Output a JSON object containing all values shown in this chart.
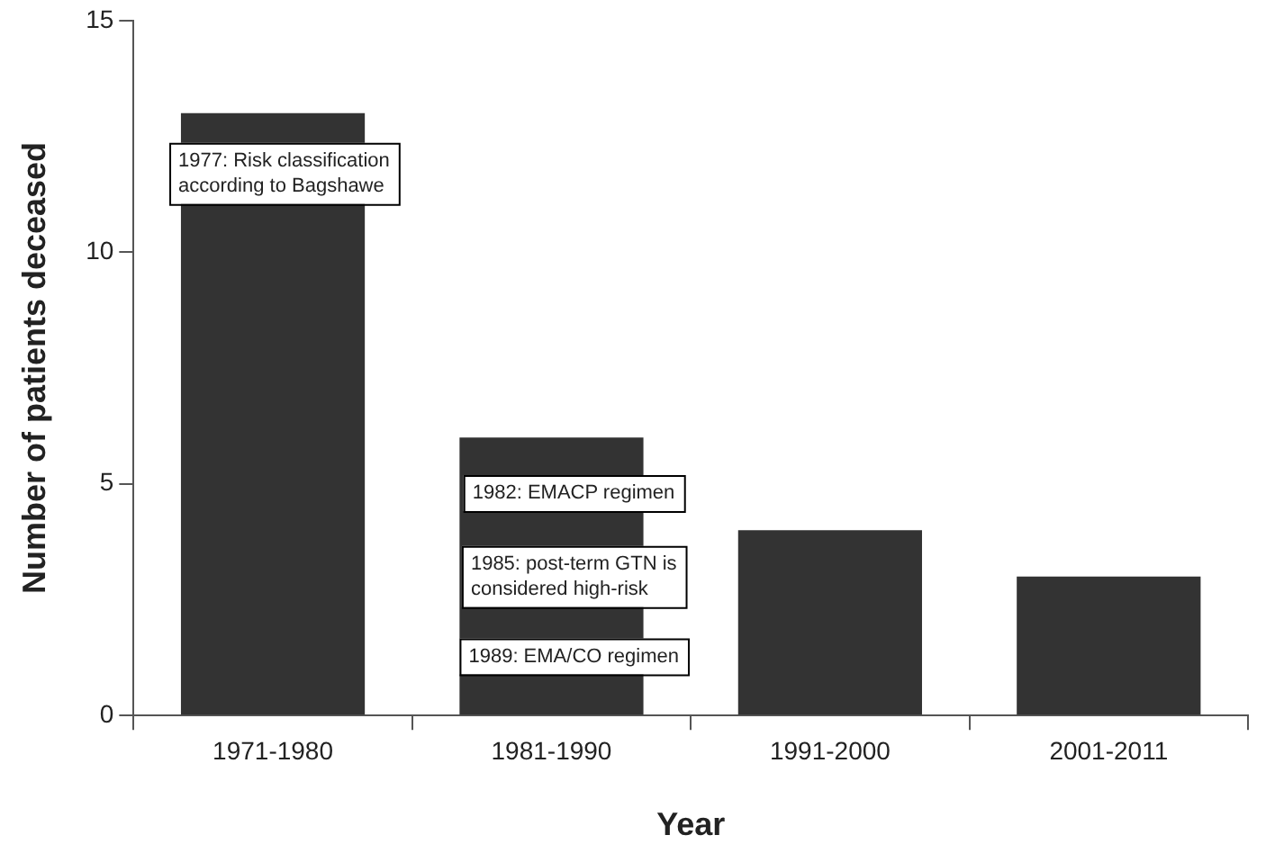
{
  "chart_data": {
    "type": "bar",
    "xlabel": "Year",
    "ylabel": "Number of patients deceased",
    "categories": [
      "1971-1980",
      "1981-1990",
      "1991-2000",
      "2001-2011"
    ],
    "values": [
      13,
      6,
      4,
      3
    ],
    "color": "#333333",
    "ylim": [
      0,
      15
    ],
    "yticks": [
      0,
      5,
      10,
      15
    ],
    "grid": false,
    "legend": false,
    "annotations": [
      "1977: Risk classification according to Bagshawe",
      "1982: EMACP regimen",
      "1985: post-term GTN is considered high-risk",
      "1989: EMA/CO regimen"
    ]
  }
}
